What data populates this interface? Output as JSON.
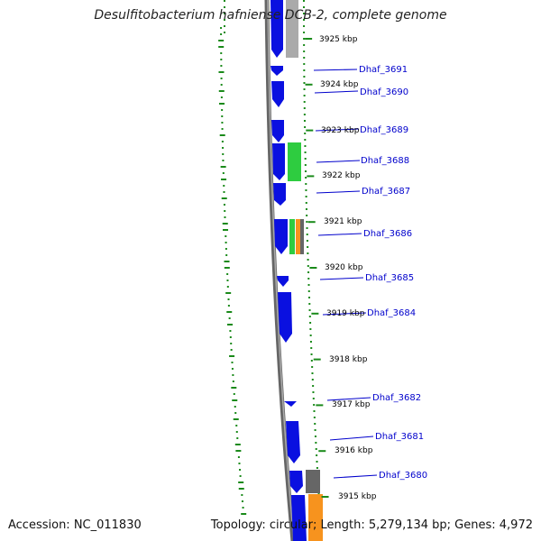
{
  "title": "Desulfitobacterium hafniense DCB-2, complete genome",
  "accession": "Accession: NC_011830",
  "stats": "Topology: circular; Length: 5,279,134 bp; Genes: 4,972",
  "colors": {
    "backbone": "#777777",
    "gene_cds": "#0a10e0",
    "gene_green": "#2ecc40",
    "gene_orange": "#f7931e",
    "gene_gray": "#666666",
    "label_line": "#0000cc",
    "gc_dots": "#1a8a1a"
  },
  "kbp_labels": [
    "3925 kbp",
    "3924 kbp",
    "3923 kbp",
    "3922 kbp",
    "3921 kbp",
    "3920 kbp",
    "3919 kbp",
    "3918 kbp",
    "3917 kbp",
    "3916 kbp",
    "3915 kbp"
  ],
  "gene_labels": [
    "Dhaf_3691",
    "Dhaf_3690",
    "Dhaf_3689",
    "Dhaf_3688",
    "Dhaf_3687",
    "Dhaf_3686",
    "Dhaf_3685",
    "Dhaf_3684",
    "Dhaf_3682",
    "Dhaf_3681",
    "Dhaf_3680"
  ]
}
